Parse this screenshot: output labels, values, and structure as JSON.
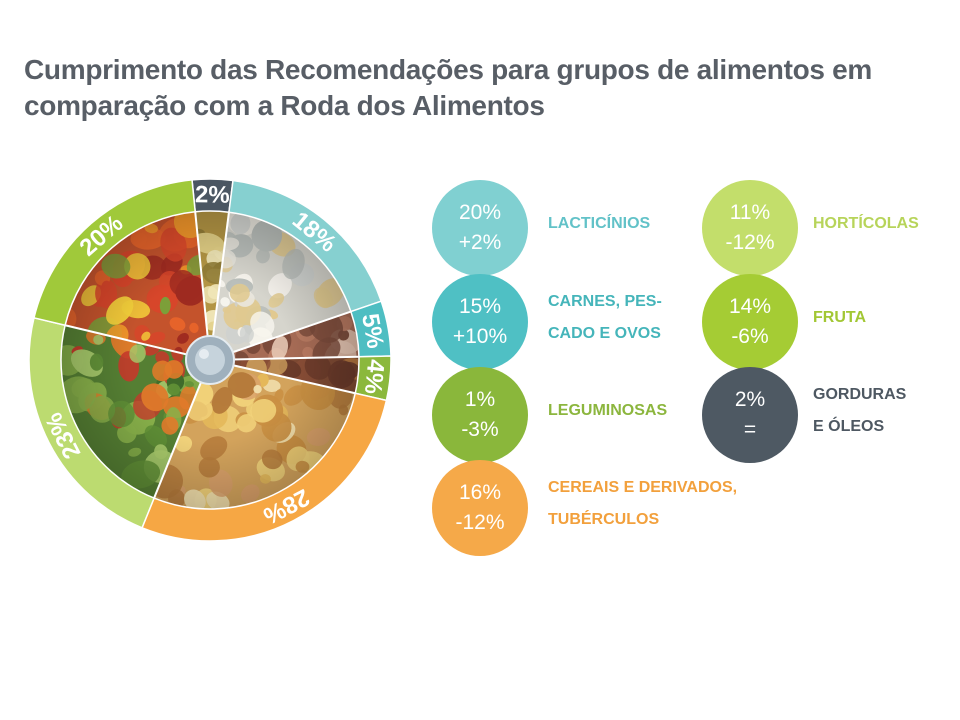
{
  "title": {
    "lines": [
      "Cumprimento das Recomendações para grupos de alimentos em",
      "comparação com a Roda dos Alimentos"
    ]
  },
  "chart_data": {
    "type": "pie",
    "slices": [
      {
        "value": 2,
        "label": "2%",
        "color": "#4b5662"
      },
      {
        "value": 18,
        "label": "18%",
        "color": "#86d0d0"
      },
      {
        "value": 5,
        "label": "5%",
        "color": "#4ebec2"
      },
      {
        "value": 4,
        "label": "4%",
        "color": "#8bb83c"
      },
      {
        "value": 28,
        "label": "28%",
        "color": "#f6a744"
      },
      {
        "value": 23,
        "label": "23%",
        "color": "#bcdb70"
      },
      {
        "value": 20,
        "label": "20%",
        "color": "#a0c93a"
      }
    ],
    "legend": [
      {
        "value": "20%",
        "change": "+2%",
        "label_lines": [
          "LACTICÍNIOS"
        ],
        "color": "#80d0d1",
        "text_color": "#62c2c8"
      },
      {
        "value": "15%",
        "change": "+10%",
        "label_lines": [
          "CARNES, PES-",
          "CADO E OVOS"
        ],
        "color": "#4fc0c4",
        "text_color": "#45b5ba"
      },
      {
        "value": "1%",
        "change": "-3%",
        "label_lines": [
          "LEGUMINOSAS"
        ],
        "color": "#8ab73b",
        "text_color": "#8cb63e"
      },
      {
        "value": "16%",
        "change": "-12%",
        "label_lines": [
          "CEREAIS E DERIVADOS,",
          "TUBÉRCULOS"
        ],
        "color": "#f5a949",
        "text_color": "#f2a03c"
      },
      {
        "value": "11%",
        "change": "-12%",
        "label_lines": [
          "HORTÍCOLAS"
        ],
        "color": "#c3de6b",
        "text_color": "#b7d45a"
      },
      {
        "value": "14%",
        "change": "-6%",
        "label_lines": [
          "FRUTA"
        ],
        "color": "#a5cc34",
        "text_color": "#a2c734"
      },
      {
        "value": "2%",
        "change": "=",
        "label_lines": [
          "GORDURAS",
          "E ÓLEOS"
        ],
        "color": "#4e5963",
        "text_color": "#4e5862"
      }
    ]
  }
}
